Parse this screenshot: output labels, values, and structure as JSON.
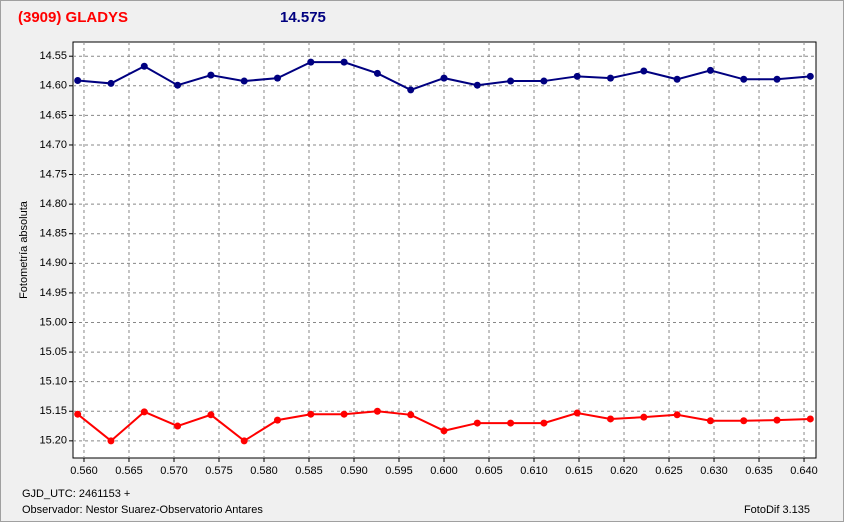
{
  "chart_data": {
    "type": "line",
    "title": "(3909) GLADYS",
    "subtitle": "14.575",
    "ylabel": "Fotometría absoluta",
    "xlabel": "GJD_UTC: 2461153 +",
    "footer_left": "Observador: Nestor Suarez-Observatorio Antares",
    "footer_right": "FotoDif 3.135",
    "y_inverted": true,
    "grid": true,
    "x": [
      0.5593,
      0.563,
      0.5667,
      0.5704,
      0.5741,
      0.5778,
      0.5815,
      0.5852,
      0.5889,
      0.5926,
      0.5963,
      0.6,
      0.6037,
      0.6074,
      0.6111,
      0.6148,
      0.6185,
      0.6222,
      0.6259,
      0.6296,
      0.6333,
      0.637,
      0.6407
    ],
    "series": [
      {
        "color": "#000080",
        "values": [
          14.591,
          14.596,
          14.567,
          14.599,
          14.582,
          14.592,
          14.587,
          14.56,
          14.56,
          14.579,
          14.607,
          14.587,
          14.599,
          14.592,
          14.592,
          14.584,
          14.587,
          14.575,
          14.589,
          14.574,
          14.589,
          14.589,
          14.584
        ]
      },
      {
        "color": "#ff0000",
        "values": [
          15.155,
          15.2,
          15.151,
          15.175,
          15.156,
          15.2,
          15.165,
          15.155,
          15.155,
          15.15,
          15.156,
          15.183,
          15.17,
          15.17,
          15.17,
          15.153,
          15.163,
          15.16,
          15.156,
          15.166,
          15.166,
          15.165,
          15.163
        ]
      }
    ],
    "xlim": [
      0.55878,
      0.64133
    ],
    "xticks": [
      {
        "value": 0.56,
        "label": "0.560"
      },
      0.565,
      {
        "value": 0.57,
        "label": "0.570"
      },
      0.575,
      {
        "value": 0.58,
        "label": "0.580"
      },
      0.585,
      {
        "value": 0.59,
        "label": "0.590"
      },
      0.595,
      {
        "value": 0.6,
        "label": "0.600"
      },
      0.605,
      {
        "value": 0.61,
        "label": "0.610"
      },
      0.615,
      {
        "value": 0.62,
        "label": "0.620"
      },
      0.625,
      {
        "value": 0.63,
        "label": "0.630"
      },
      0.635,
      {
        "value": 0.64,
        "label": "0.640"
      }
    ],
    "ylim": [
      14.526,
      15.229
    ],
    "yticks": [
      14.55,
      {
        "value": 14.6,
        "label": "14.60"
      },
      14.65,
      {
        "value": 14.7,
        "label": "14.70"
      },
      14.75,
      {
        "value": 14.8,
        "label": "14.80"
      },
      14.85,
      {
        "value": 14.9,
        "label": "14.90"
      },
      14.95,
      {
        "value": 15.0,
        "label": "15.00"
      },
      15.05,
      {
        "value": 15.1,
        "label": "15.10"
      },
      15.15,
      {
        "value": 15.2,
        "label": "15.20"
      }
    ]
  }
}
